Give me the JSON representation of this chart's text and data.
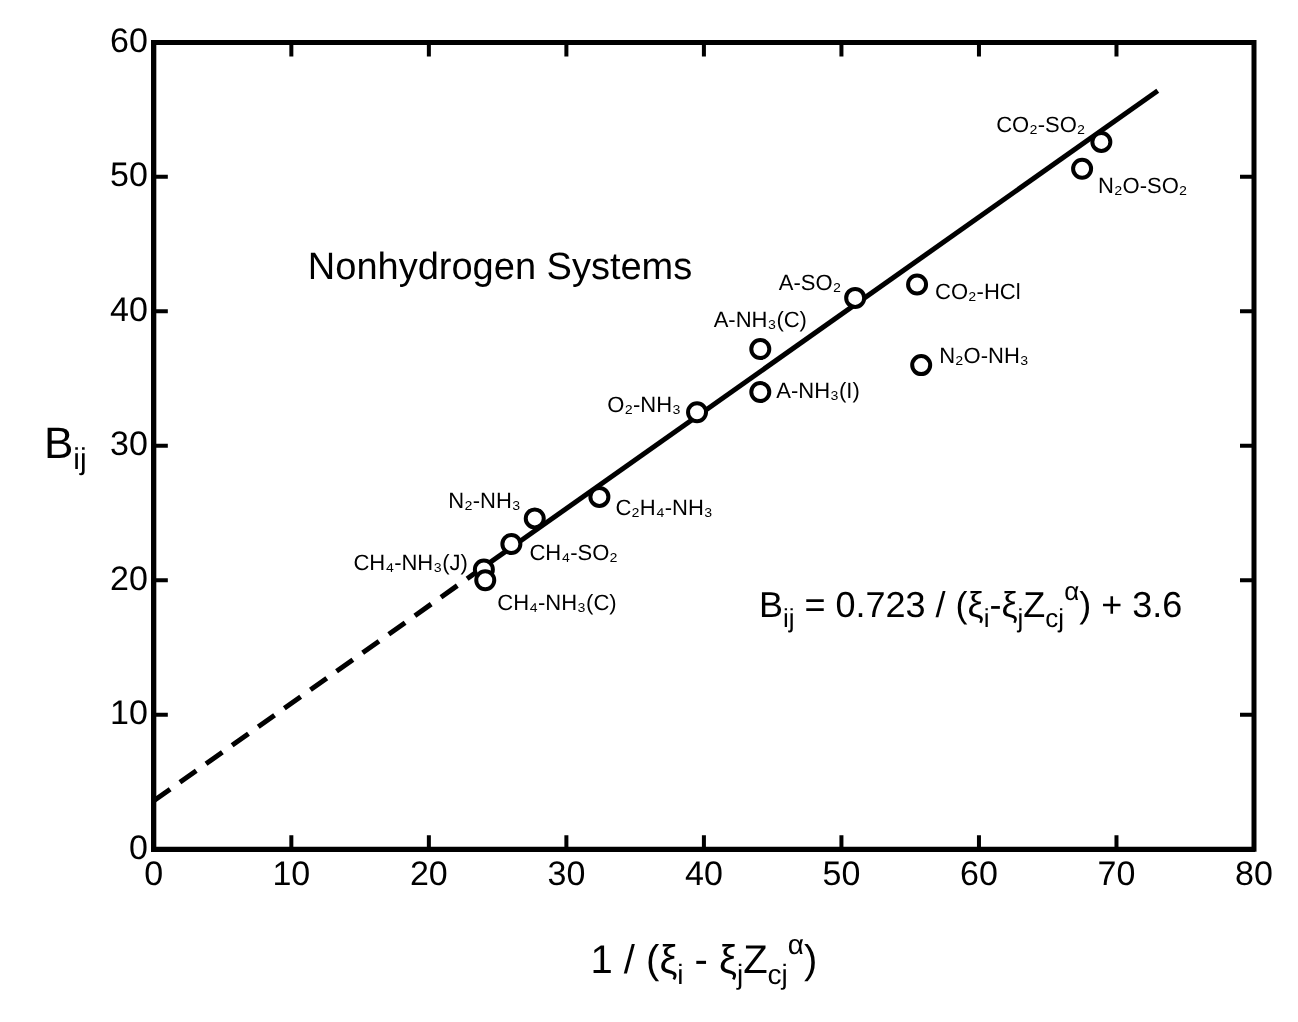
{
  "chart_data": {
    "type": "scatter",
    "xlabel": "1 / (ξ$_{i}$ - ξ$_{j}$Z$_{cj}$$^{α}$)",
    "ylabel": "B$_{ij}$",
    "xlim": [
      0,
      80
    ],
    "xticks": [
      0,
      10,
      20,
      30,
      40,
      50,
      60,
      70,
      80
    ],
    "ylim": [
      0,
      60
    ],
    "yticks": [
      0,
      10,
      20,
      30,
      40,
      50,
      60
    ],
    "grid": false,
    "legend": false,
    "annotations": [
      {
        "text": "CO₂-SO₂",
        "x": 68.9,
        "y": 52.6
      },
      {
        "text": "N₂O-SO₂",
        "x": 67.5,
        "y": 50.6
      },
      {
        "text": "A-SO₂",
        "x": 51.0,
        "y": 41.0
      },
      {
        "text": "CO₂-HCl",
        "x": 55.5,
        "y": 42.0
      },
      {
        "text": "N₂O-NH₃",
        "x": 55.8,
        "y": 36.0
      },
      {
        "text": "A-NH₃(C)",
        "x": 44.1,
        "y": 37.2
      },
      {
        "text": "A-NH₃(I)",
        "x": 44.1,
        "y": 34.0
      },
      {
        "text": "O₂-NH₃",
        "x": 39.5,
        "y": 32.5
      },
      {
        "text": "C₂H₄-NH₃",
        "x": 32.4,
        "y": 26.2
      },
      {
        "text": "N₂-NH₃",
        "x": 27.7,
        "y": 24.6
      },
      {
        "text": "CH₄-SO₂",
        "x": 26.0,
        "y": 22.7
      },
      {
        "text": "CH₄-NH₃(J)",
        "x": 24.0,
        "y": 20.8
      },
      {
        "text": "CH₄-NH₃(C)",
        "x": 24.1,
        "y": 20.0
      },
      "Nonhydrogen Systems",
      "B$_{ij}$ = 0.723 / (ξ$_{i}$-ξ$_{j}$Z$_{cj}$$^{α}$) + 3.6"
    ],
    "series": [
      {
        "color": "#000000",
        "marker": "circle",
        "x": [
          68.9,
          67.5,
          51.0,
          55.5,
          55.8,
          44.1,
          44.1,
          39.5,
          32.4,
          27.7,
          26.0,
          24.0,
          24.1
        ],
        "values": [
          52.6,
          50.6,
          41.0,
          42.0,
          36.0,
          37.2,
          34.0,
          32.5,
          26.2,
          24.6,
          22.7,
          20.8,
          20.0
        ]
      },
      {
        "type": "line",
        "color": "#000000",
        "line_style": "dashed",
        "marker": "none",
        "x": [
          0,
          24
        ],
        "values": [
          3.6,
          21
        ]
      },
      {
        "type": "line",
        "color": "#000000",
        "line_style": "solid",
        "marker": "none",
        "x": [
          24,
          73
        ],
        "values": [
          21,
          56.4
        ]
      }
    ]
  }
}
